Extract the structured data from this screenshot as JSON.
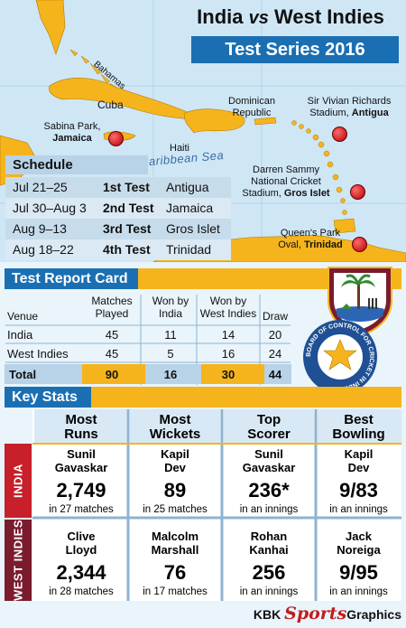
{
  "title": {
    "prefix": "India",
    "vs": "vs",
    "suffix": "West Indies"
  },
  "subtitle": "Test Series 2016",
  "map": {
    "sea_label": "Caribbean Sea",
    "places": {
      "bahamas": "Bahamas",
      "cuba": "Cuba",
      "haiti": "Haiti",
      "dominican_line1": "Dominican",
      "dominican_line2": "Republic",
      "sabina_line1": "Sabina Park,",
      "sabina_line2": "Jamaica",
      "vivian_line1": "Sir Vivian Richards",
      "vivian_line2": "Stadium,",
      "vivian_line2b": "Antigua",
      "sammy_line1": "Darren Sammy",
      "sammy_line2": "National Cricket",
      "sammy_line3": "Stadium,",
      "sammy_line3b": "Gros Islet",
      "queens_line1": "Queen's Park",
      "queens_line2": "Oval,",
      "queens_line2b": "Trinidad"
    }
  },
  "schedule": {
    "heading": "Schedule",
    "rows": [
      {
        "dates": "Jul 21–25",
        "test": "1st Test",
        "venue": "Antigua"
      },
      {
        "dates": "Jul 30–Aug 3",
        "test": "2nd Test",
        "venue": "Jamaica"
      },
      {
        "dates": "Aug 9–13",
        "test": "3rd Test",
        "venue": "Gros Islet"
      },
      {
        "dates": "Aug 18–22",
        "test": "4th Test",
        "venue": "Trinidad"
      }
    ]
  },
  "report_card": {
    "heading": "Test Report Card",
    "headers": {
      "venue": "Venue",
      "matches_1": "Matches",
      "matches_2": "Played",
      "india_1": "Won by",
      "india_2": "India",
      "wi_1": "Won by",
      "wi_2": "West Indies",
      "draw": "Draw"
    },
    "rows": [
      {
        "venue": "India",
        "played": "45",
        "india": "11",
        "wi": "14",
        "draw": "20"
      },
      {
        "venue": "West Indies",
        "played": "45",
        "india": "5",
        "wi": "16",
        "draw": "24"
      }
    ],
    "total": {
      "venue": "Total",
      "played": "90",
      "india": "16",
      "wi": "30",
      "draw": "44"
    }
  },
  "key_stats": {
    "heading": "Key Stats",
    "columns": [
      {
        "h1": "Most",
        "h2": "Runs"
      },
      {
        "h1": "Most",
        "h2": "Wickets"
      },
      {
        "h1": "Top",
        "h2": "Scorer"
      },
      {
        "h1": "Best",
        "h2": "Bowling"
      }
    ],
    "teams": [
      {
        "label": "INDIA",
        "cells": [
          {
            "n1": "Sunil",
            "n2": "Gavaskar",
            "value": "2,749",
            "sub": "in 27 matches"
          },
          {
            "n1": "Kapil",
            "n2": "Dev",
            "value": "89",
            "sub": "in 25 matches"
          },
          {
            "n1": "Sunil",
            "n2": "Gavaskar",
            "value": "236*",
            "sub": "in an innings"
          },
          {
            "n1": "Kapil",
            "n2": "Dev",
            "value": "9/83",
            "sub": "in an innings"
          }
        ]
      },
      {
        "label": "WEST INDIES",
        "cells": [
          {
            "n1": "Clive",
            "n2": "Lloyd",
            "value": "2,344",
            "sub": "in 28 matches"
          },
          {
            "n1": "Malcolm",
            "n2": "Marshall",
            "value": "76",
            "sub": "in 17 matches"
          },
          {
            "n1": "Rohan",
            "n2": "Kanhai",
            "value": "256",
            "sub": "in an innings"
          },
          {
            "n1": "Jack",
            "n2": "Noreiga",
            "value": "9/95",
            "sub": "in an innings"
          }
        ]
      }
    ]
  },
  "footer": {
    "left": "KBK",
    "mid": "Sports",
    "right": "Graphics"
  },
  "colors": {
    "blue": "#1a6fb3",
    "orange": "#f6b41c",
    "india_red": "#c7202a",
    "ball_red": "#b30000"
  },
  "logos": {
    "wi_logo": "West Indies cricket crest",
    "bcci_logo": "BCCI seal",
    "bcci_text": "BOARD OF CONTROL FOR CRICKET IN INDIA"
  }
}
